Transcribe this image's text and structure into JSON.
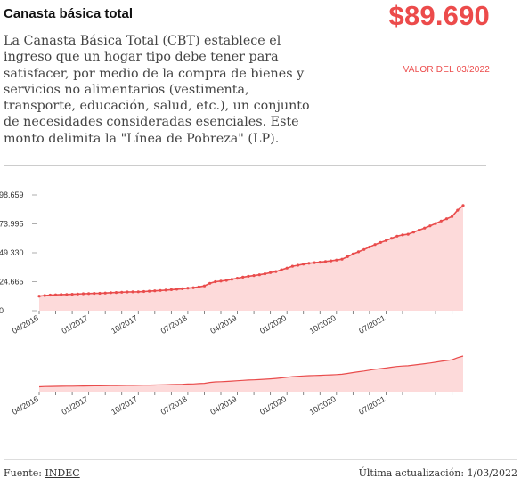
{
  "header": {
    "title": "Canasta básica total",
    "value": "$89.690",
    "value_date": "VALOR DEL 03/2022",
    "description": "La Canasta Básica Total (CBT) establece el ingreso que un hogar tipo debe tener para satisfacer, por medio de la compra de bienes y servicios no alimentarios (vestimenta, transporte, educación, salud, etc.), un conjunto de necesidades consideradas esenciales. Este monto delimita la \"Línea de Pobreza\" (LP)."
  },
  "footer": {
    "source_label": "Fuente: ",
    "source_link": "INDEC",
    "updated": "Última actualización: 1/03/2022"
  },
  "colors": {
    "accent": "#ec4b4b",
    "area_fill": "#fddada",
    "line": "#e94c4c"
  },
  "chart_data": {
    "type": "area",
    "start": "04/2016",
    "y_tick_labels": [
      "$0",
      "$24.665",
      "$49.330",
      "$73.995",
      "$98.659"
    ],
    "y_ticks": [
      0,
      24665,
      49330,
      73995,
      98659
    ],
    "ylim": [
      0,
      98659
    ],
    "x_tick_labels": [
      "04/2016",
      "01/2017",
      "10/2017",
      "07/2018",
      "04/2019",
      "01/2020",
      "10/2020",
      "07/2021"
    ],
    "brush_x_tick_labels": [
      "04/2016",
      "01/2017",
      "10/2017",
      "07/2018",
      "04/2019",
      "01/2020",
      "10/2020",
      "07/2021"
    ],
    "grid": false,
    "values": [
      12400,
      12900,
      13300,
      13500,
      13700,
      13800,
      14000,
      14200,
      14400,
      14600,
      14700,
      14800,
      15000,
      15300,
      15500,
      15700,
      15900,
      16000,
      16100,
      16300,
      16600,
      16900,
      17200,
      17500,
      17900,
      18300,
      18700,
      19200,
      19600,
      20300,
      21100,
      23300,
      24700,
      25200,
      25800,
      26700,
      27600,
      28500,
      29300,
      29900,
      30600,
      31400,
      32400,
      33300,
      34800,
      36300,
      37900,
      38700,
      39600,
      40400,
      40900,
      41300,
      41900,
      42400,
      43100,
      43900,
      46000,
      48300,
      50200,
      52100,
      54300,
      56400,
      58100,
      59700,
      61700,
      63500,
      64600,
      65200,
      67000,
      68700,
      70400,
      72300,
      74300,
      76400,
      78400,
      80300,
      85700,
      89690
    ]
  }
}
